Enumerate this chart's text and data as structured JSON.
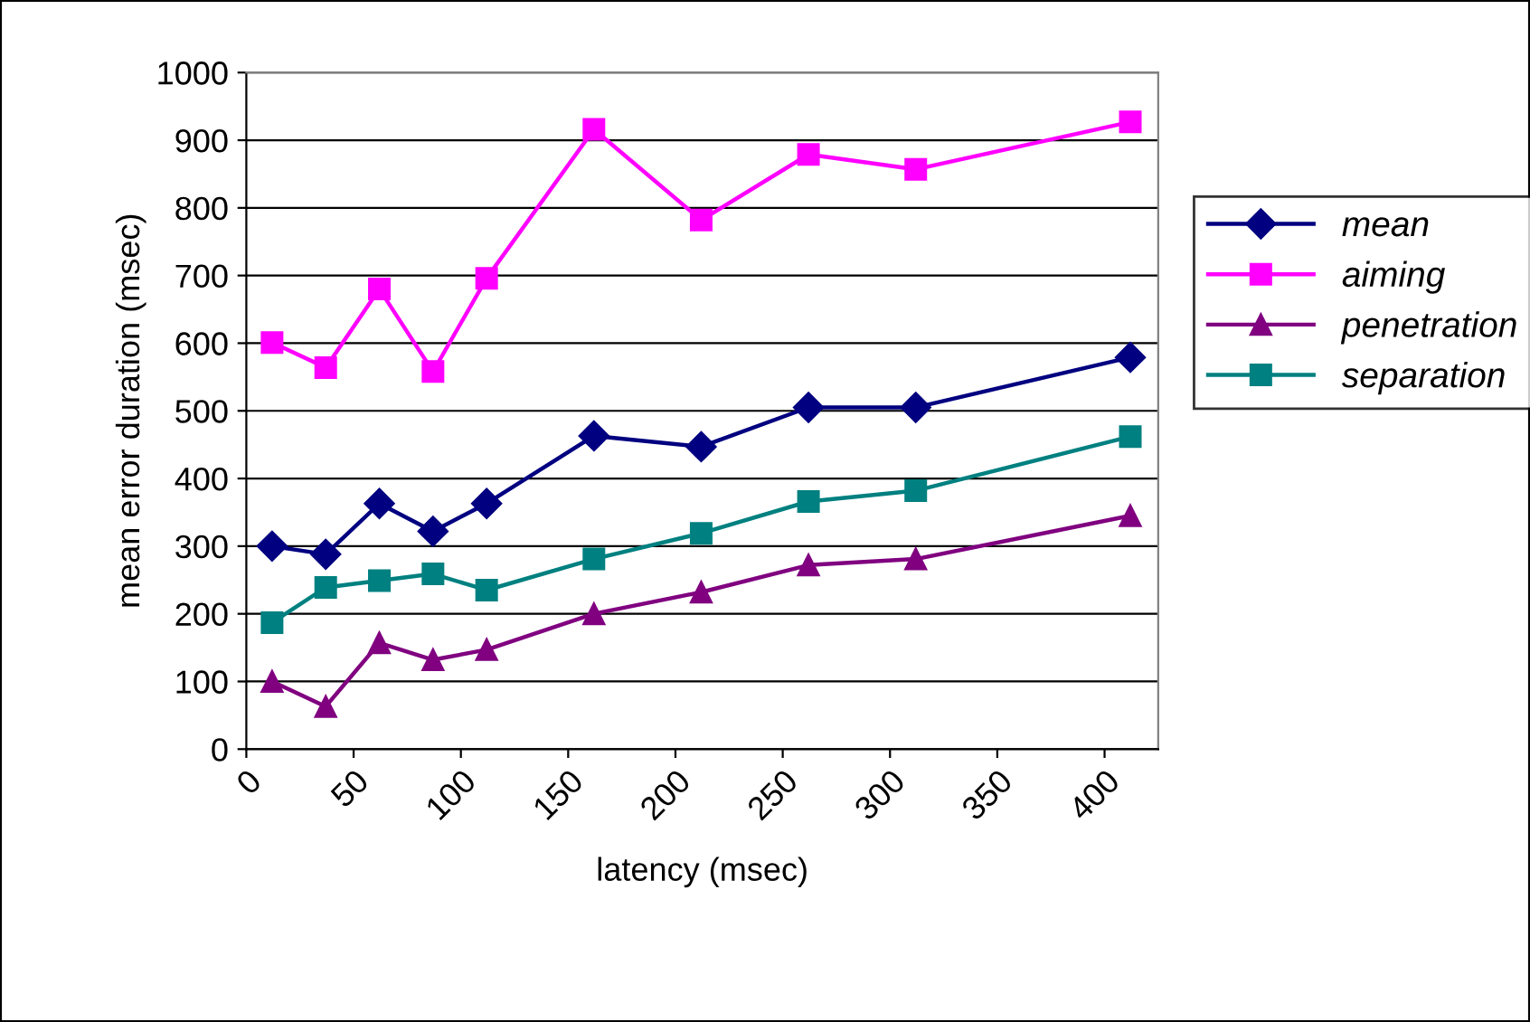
{
  "chart_data": {
    "type": "line",
    "xlabel": "latency (msec)",
    "ylabel": "mean error duration (msec)",
    "x": [
      12,
      37,
      62,
      87,
      112,
      162,
      212,
      262,
      312,
      412
    ],
    "series": [
      {
        "name": "mean",
        "color": "#000080",
        "marker": "diamond",
        "values": [
          300,
          288,
          363,
          322,
          363,
          463,
          447,
          505,
          505,
          579
        ]
      },
      {
        "name": "aiming",
        "color": "#ff00ff",
        "marker": "square",
        "values": [
          601,
          564,
          680,
          558,
          696,
          916,
          782,
          879,
          857,
          927
        ]
      },
      {
        "name": "penetration",
        "color": "#800080",
        "marker": "triangle",
        "values": [
          100,
          63,
          157,
          132,
          147,
          200,
          232,
          272,
          281,
          345
        ]
      },
      {
        "name": "separation",
        "color": "#008080",
        "marker": "square",
        "values": [
          187,
          239,
          249,
          259,
          235,
          281,
          319,
          366,
          382,
          462
        ]
      }
    ],
    "xlim": [
      0,
      425
    ],
    "xticks": [
      0,
      50,
      100,
      150,
      200,
      250,
      300,
      350,
      400
    ],
    "ylim": [
      0,
      1000
    ],
    "yticks": [
      0,
      100,
      200,
      300,
      400,
      500,
      600,
      700,
      800,
      900,
      1000
    ],
    "grid": "y",
    "legend": "right"
  }
}
